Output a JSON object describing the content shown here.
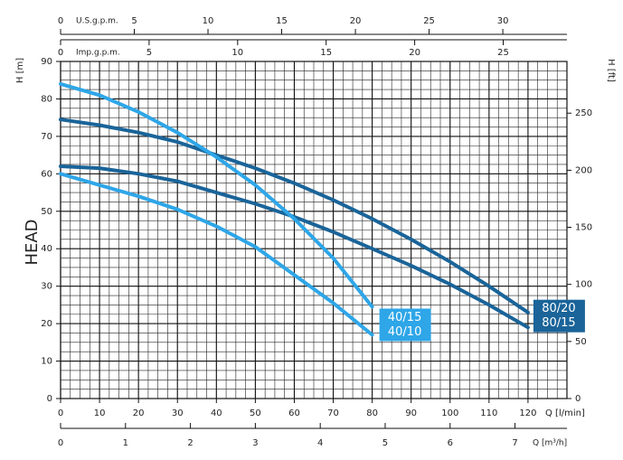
{
  "chart_data": {
    "type": "line",
    "xlabel": "Q [l/min]",
    "ylabel": "H [m]",
    "y2label": "H [ft]",
    "side_label": "HEAD",
    "xlim": [
      0,
      130
    ],
    "xticks": [
      0,
      10,
      20,
      30,
      40,
      50,
      60,
      70,
      80,
      90,
      100,
      110,
      120
    ],
    "ylim": [
      0,
      90
    ],
    "yticks": [
      0,
      10,
      20,
      30,
      40,
      50,
      60,
      70,
      80,
      90
    ],
    "y2lim": [
      0,
      295.3
    ],
    "y2ticks": [
      0,
      50,
      100,
      150,
      200,
      250
    ],
    "grid": true,
    "top_axes": [
      {
        "label": "U.S.g.p.m.",
        "lim": [
          0,
          34.35
        ],
        "ticks": [
          0,
          5,
          10,
          15,
          20,
          25,
          30
        ]
      },
      {
        "label": "Imp.g.p.m.",
        "lim": [
          0,
          28.6
        ],
        "ticks": [
          0,
          5,
          10,
          15,
          20,
          25
        ]
      }
    ],
    "bottom_axis": {
      "label": "Q [m³/h]",
      "lim": [
        0,
        7.8
      ],
      "ticks": [
        0,
        1,
        2,
        3,
        4,
        5,
        6,
        7
      ]
    },
    "series": [
      {
        "name": "80/20",
        "color": "#1a6499",
        "x": [
          0,
          10,
          20,
          30,
          40,
          50,
          60,
          70,
          80,
          90,
          100,
          110,
          120
        ],
        "values": [
          74.5,
          73,
          71,
          68.5,
          65,
          61.5,
          57.5,
          53,
          48,
          42.5,
          36.5,
          30,
          23
        ]
      },
      {
        "name": "80/15",
        "color": "#1a6499",
        "x": [
          0,
          10,
          20,
          30,
          40,
          50,
          60,
          70,
          80,
          90,
          100,
          110,
          120
        ],
        "values": [
          62,
          61.5,
          60,
          58,
          55,
          52,
          48.5,
          44.5,
          40,
          35.5,
          30.5,
          25,
          19
        ]
      },
      {
        "name": "40/15",
        "color": "#2ea6e8",
        "x": [
          0,
          10,
          20,
          30,
          40,
          50,
          60,
          70,
          80
        ],
        "values": [
          84,
          81,
          76.5,
          71,
          64.5,
          57,
          48,
          37.5,
          24.5
        ]
      },
      {
        "name": "40/10",
        "color": "#2ea6e8",
        "x": [
          0,
          10,
          20,
          30,
          40,
          50,
          60,
          70,
          80
        ],
        "values": [
          60,
          57,
          54,
          50.5,
          46,
          40.5,
          33,
          25.5,
          17
        ]
      }
    ]
  }
}
